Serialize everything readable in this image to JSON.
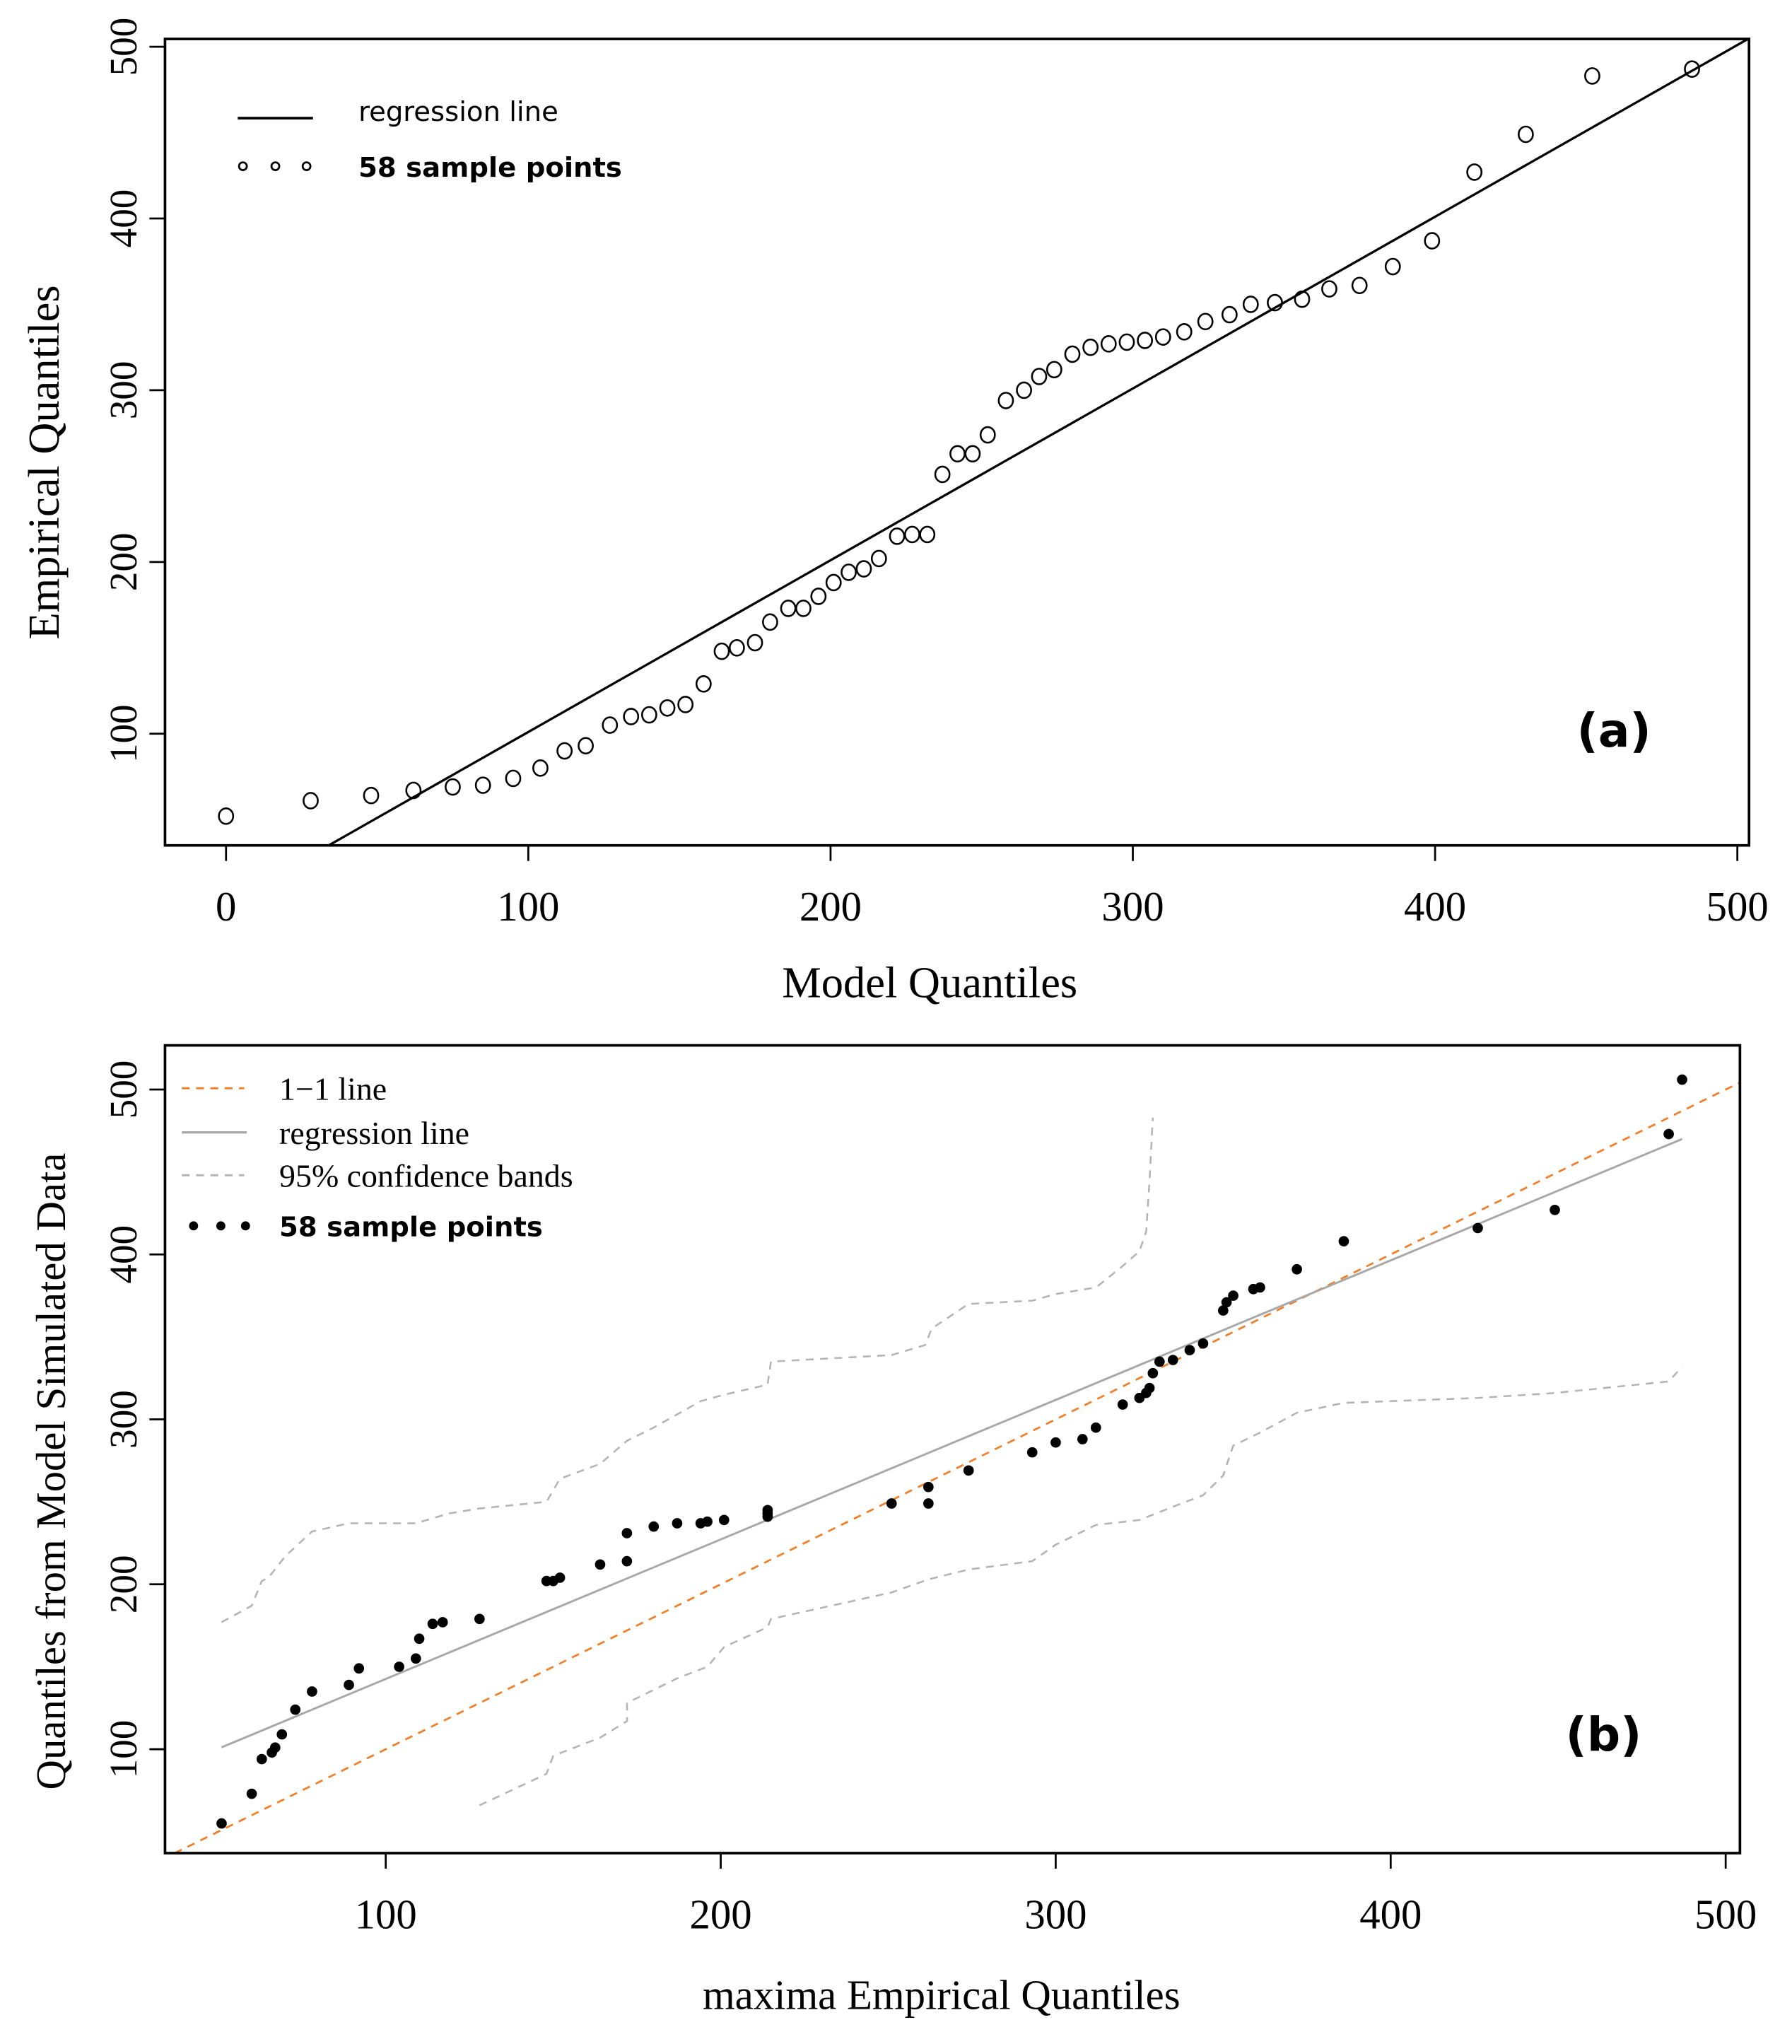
{
  "chart_data": [
    {
      "type": "scatter",
      "panel_label": "(a)",
      "xlabel": "Model Quantiles",
      "ylabel": "Empirical Quantiles",
      "xlim": [
        -20,
        505
      ],
      "ylim": [
        35,
        505
      ],
      "xticks": [
        0,
        100,
        200,
        300,
        400,
        500
      ],
      "yticks": [
        100,
        200,
        300,
        400,
        500
      ],
      "grid": false,
      "legend_position": "top-left",
      "legend": [
        {
          "label": "regression line",
          "style": "solid-line"
        },
        {
          "label": "58 sample points",
          "style": "open-circle"
        }
      ],
      "regression": {
        "slope": 1.0,
        "intercept": 1
      },
      "colors": {
        "points": "#000000",
        "regression": "#000000"
      },
      "points": [
        [
          0,
          52
        ],
        [
          28,
          61
        ],
        [
          48,
          64
        ],
        [
          62,
          67
        ],
        [
          75,
          69
        ],
        [
          85,
          70
        ],
        [
          95,
          74
        ],
        [
          104,
          80
        ],
        [
          112,
          90
        ],
        [
          119,
          93
        ],
        [
          127,
          105
        ],
        [
          134,
          110
        ],
        [
          140,
          111
        ],
        [
          146,
          115
        ],
        [
          152,
          117
        ],
        [
          158,
          129
        ],
        [
          164,
          148
        ],
        [
          169,
          150
        ],
        [
          175,
          153
        ],
        [
          180,
          165
        ],
        [
          186,
          173
        ],
        [
          191,
          173
        ],
        [
          196,
          180
        ],
        [
          201,
          188
        ],
        [
          206,
          194
        ],
        [
          211,
          196
        ],
        [
          216,
          202
        ],
        [
          222,
          215
        ],
        [
          227,
          216
        ],
        [
          232,
          216
        ],
        [
          237,
          251
        ],
        [
          242,
          263
        ],
        [
          247,
          263
        ],
        [
          252,
          274
        ],
        [
          258,
          294
        ],
        [
          264,
          300
        ],
        [
          269,
          308
        ],
        [
          274,
          312
        ],
        [
          280,
          321
        ],
        [
          286,
          325
        ],
        [
          292,
          327
        ],
        [
          298,
          328
        ],
        [
          304,
          329
        ],
        [
          310,
          331
        ],
        [
          317,
          334
        ],
        [
          324,
          340
        ],
        [
          332,
          344
        ],
        [
          339,
          350
        ],
        [
          347,
          351
        ],
        [
          356,
          353
        ],
        [
          365,
          359
        ],
        [
          375,
          361
        ],
        [
          386,
          372
        ],
        [
          399,
          387
        ],
        [
          413,
          427
        ],
        [
          430,
          449
        ],
        [
          452,
          483
        ],
        [
          485,
          487
        ]
      ]
    },
    {
      "type": "scatter",
      "panel_label": "(b)",
      "xlabel": "maxima Empirical Quantiles",
      "ylabel": "Quantiles from Model Simulated Data",
      "xlim": [
        33,
        505
      ],
      "ylim": [
        36,
        526
      ],
      "xticks": [
        100,
        200,
        300,
        400,
        500
      ],
      "yticks": [
        100,
        200,
        300,
        400,
        500
      ],
      "grid": false,
      "legend_position": "top-left",
      "legend": [
        {
          "label": "1−1 line",
          "style": "dashed-orange"
        },
        {
          "label": "regression line",
          "style": "solid-gray"
        },
        {
          "label": "95% confidence bands",
          "style": "dashed-gray"
        },
        {
          "label": "58 sample points",
          "style": "filled-dot"
        }
      ],
      "one_to_one": {
        "slope": 1,
        "intercept": 0
      },
      "regression": {
        "slope": 0.846,
        "intercept": 58,
        "x_range": [
          51,
          487
        ]
      },
      "colors": {
        "points": "#000000",
        "one_to_one": "#f07f2a",
        "regression": "#a8a8a8",
        "bands": "#b4b4b4"
      },
      "points": [
        [
          51,
          55
        ],
        [
          60,
          73
        ],
        [
          63,
          94
        ],
        [
          66,
          98
        ],
        [
          67,
          101
        ],
        [
          69,
          109
        ],
        [
          73,
          124
        ],
        [
          78,
          135
        ],
        [
          89,
          139
        ],
        [
          92,
          149
        ],
        [
          104,
          150
        ],
        [
          109,
          155
        ],
        [
          110,
          167
        ],
        [
          114,
          176
        ],
        [
          117,
          177
        ],
        [
          128,
          179
        ],
        [
          148,
          202
        ],
        [
          150,
          202
        ],
        [
          152,
          204
        ],
        [
          164,
          212
        ],
        [
          172,
          214
        ],
        [
          172,
          231
        ],
        [
          180,
          235
        ],
        [
          187,
          237
        ],
        [
          194,
          237
        ],
        [
          196,
          238
        ],
        [
          201,
          239
        ],
        [
          214,
          241
        ],
        [
          214,
          243
        ],
        [
          214,
          245
        ],
        [
          251,
          249
        ],
        [
          262,
          249
        ],
        [
          262,
          259
        ],
        [
          274,
          269
        ],
        [
          293,
          280
        ],
        [
          300,
          286
        ],
        [
          308,
          288
        ],
        [
          312,
          295
        ],
        [
          320,
          309
        ],
        [
          325,
          313
        ],
        [
          327,
          316
        ],
        [
          328,
          319
        ],
        [
          329,
          328
        ],
        [
          331,
          335
        ],
        [
          335,
          336
        ],
        [
          340,
          342
        ],
        [
          344,
          346
        ],
        [
          350,
          366
        ],
        [
          351,
          371
        ],
        [
          353,
          375
        ],
        [
          359,
          379
        ],
        [
          361,
          380
        ],
        [
          372,
          391
        ],
        [
          386,
          408
        ],
        [
          426,
          416
        ],
        [
          449,
          427
        ],
        [
          483,
          473
        ],
        [
          487,
          506
        ]
      ],
      "upper_band": [
        [
          51,
          177
        ],
        [
          60,
          187
        ],
        [
          63,
          202
        ],
        [
          65,
          204
        ],
        [
          70,
          217
        ],
        [
          78,
          232
        ],
        [
          89,
          237
        ],
        [
          109,
          237
        ],
        [
          119,
          243
        ],
        [
          128,
          246
        ],
        [
          148,
          250
        ],
        [
          152,
          264
        ],
        [
          164,
          273
        ],
        [
          172,
          287
        ],
        [
          180,
          295
        ],
        [
          194,
          311
        ],
        [
          201,
          315
        ],
        [
          214,
          321
        ],
        [
          215,
          335
        ],
        [
          251,
          339
        ],
        [
          261,
          345
        ],
        [
          263,
          355
        ],
        [
          274,
          370
        ],
        [
          293,
          372
        ],
        [
          300,
          376
        ],
        [
          312,
          380
        ],
        [
          320,
          393
        ],
        [
          325,
          402
        ],
        [
          327,
          414
        ],
        [
          328,
          444
        ],
        [
          329,
          483
        ]
      ],
      "lower_band": [
        [
          128,
          66
        ],
        [
          148,
          85
        ],
        [
          150,
          96
        ],
        [
          164,
          107
        ],
        [
          172,
          117
        ],
        [
          172,
          128
        ],
        [
          187,
          143
        ],
        [
          196,
          150
        ],
        [
          201,
          162
        ],
        [
          214,
          174
        ],
        [
          215,
          179
        ],
        [
          251,
          195
        ],
        [
          262,
          203
        ],
        [
          274,
          209
        ],
        [
          293,
          214
        ],
        [
          300,
          224
        ],
        [
          312,
          236
        ],
        [
          325,
          239
        ],
        [
          335,
          247
        ],
        [
          344,
          254
        ],
        [
          350,
          266
        ],
        [
          353,
          284
        ],
        [
          361,
          292
        ],
        [
          372,
          304
        ],
        [
          386,
          310
        ],
        [
          426,
          313
        ],
        [
          449,
          316
        ],
        [
          483,
          323
        ],
        [
          487,
          332
        ]
      ]
    }
  ]
}
